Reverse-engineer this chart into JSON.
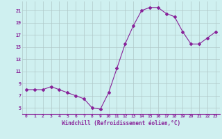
{
  "x": [
    0,
    1,
    2,
    3,
    4,
    5,
    6,
    7,
    8,
    9,
    10,
    11,
    12,
    13,
    14,
    15,
    16,
    17,
    18,
    19,
    20,
    21,
    22,
    23
  ],
  "y": [
    8,
    8,
    8,
    8.5,
    8,
    7.5,
    7,
    6.5,
    5,
    4.8,
    7.5,
    11.5,
    15.5,
    18.5,
    21,
    21.5,
    21.5,
    20.5,
    20,
    17.5,
    15.5,
    15.5,
    16.5,
    17.5
  ],
  "line_color": "#882299",
  "marker": "D",
  "marker_size": 2,
  "bg_color": "#cff0f0",
  "grid_color": "#b0c8c8",
  "xlabel": "Windchill (Refroidissement éolien,°C)",
  "tick_color": "#882299",
  "yticks": [
    5,
    7,
    9,
    11,
    13,
    15,
    17,
    19,
    21
  ],
  "ylim": [
    4.0,
    22.5
  ],
  "xlim": [
    -0.5,
    23.5
  ],
  "xtick_labels": [
    "0",
    "1",
    "2",
    "3",
    "4",
    "5",
    "6",
    "7",
    "8",
    "9",
    "10",
    "11",
    "12",
    "13",
    "14",
    "15",
    "16",
    "17",
    "18",
    "19",
    "20",
    "21",
    "22",
    "23"
  ]
}
